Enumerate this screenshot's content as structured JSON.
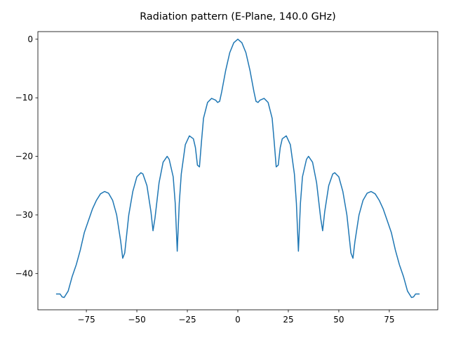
{
  "chart_data": {
    "type": "line",
    "title": "Radiation pattern (E-Plane, 140.0 GHz)",
    "x": [
      -90,
      -88,
      -87,
      -86,
      -84,
      -82,
      -80,
      -78,
      -76,
      -74,
      -72,
      -70,
      -68,
      -66,
      -64,
      -62,
      -60,
      -58,
      -57,
      -56,
      -54,
      -52,
      -50,
      -48,
      -47,
      -45,
      -43,
      -42,
      -41,
      -39,
      -37,
      -35,
      -34,
      -32,
      -31,
      -30,
      -29,
      -28,
      -26,
      -24,
      -22,
      -21,
      -20,
      -19,
      -18,
      -17,
      -15,
      -13,
      -11,
      -10,
      -9,
      -8,
      -6,
      -4,
      -2,
      0,
      2,
      4,
      6,
      8,
      9,
      10,
      11,
      13,
      15,
      17,
      18,
      19,
      20,
      21,
      22,
      24,
      26,
      28,
      29,
      30,
      31,
      32,
      34,
      35,
      37,
      39,
      41,
      42,
      43,
      45,
      47,
      48,
      50,
      52,
      54,
      56,
      57,
      58,
      60,
      62,
      64,
      66,
      68,
      70,
      72,
      74,
      76,
      78,
      80,
      82,
      84,
      86,
      87,
      88,
      90
    ],
    "series": [
      {
        "color": "#1f77b4",
        "values": [
          -43.5,
          -43.5,
          -44.0,
          -44.1,
          -43.0,
          -40.5,
          -38.5,
          -36.0,
          -33.0,
          -31.0,
          -29.0,
          -27.5,
          -26.4,
          -26.0,
          -26.3,
          -27.5,
          -30.0,
          -34.5,
          -37.4,
          -36.5,
          -30.0,
          -26.0,
          -23.5,
          -22.8,
          -23.0,
          -25.0,
          -29.5,
          -32.7,
          -30.5,
          -24.5,
          -21.0,
          -20.0,
          -20.5,
          -23.5,
          -28,
          -36.2,
          -28,
          -23.0,
          -18.0,
          -16.5,
          -17.0,
          -18.5,
          -21.5,
          -21.8,
          -17.5,
          -13.5,
          -10.8,
          -10.1,
          -10.4,
          -10.8,
          -10.6,
          -9.0,
          -5.3,
          -2.3,
          -0.6,
          0,
          -0.6,
          -2.3,
          -5.3,
          -9.0,
          -10.6,
          -10.8,
          -10.4,
          -10.1,
          -10.8,
          -13.5,
          -17.5,
          -21.8,
          -21.5,
          -18.5,
          -17.0,
          -16.5,
          -18.0,
          -23.0,
          -28,
          -36.2,
          -28,
          -23.5,
          -20.5,
          -20.0,
          -21.0,
          -24.5,
          -30.5,
          -32.7,
          -29.5,
          -25.0,
          -23.0,
          -22.8,
          -23.5,
          -26.0,
          -30.0,
          -36.5,
          -37.4,
          -34.5,
          -30.0,
          -27.5,
          -26.3,
          -26.0,
          -26.4,
          -27.5,
          -29.0,
          -31.0,
          -33.0,
          -36.0,
          -38.5,
          -40.5,
          -43.0,
          -44.1,
          -44.0,
          -43.5,
          -43.5
        ]
      }
    ],
    "xlim": [
      -99,
      99
    ],
    "ylim": [
      -46.2,
      1.3
    ],
    "xticks": [
      {
        "value": -75,
        "label": "−75"
      },
      {
        "value": -50,
        "label": "−50"
      },
      {
        "value": -25,
        "label": "−25"
      },
      0,
      25,
      50,
      75
    ],
    "yticks": [
      {
        "value": -40,
        "label": "−40"
      },
      {
        "value": -30,
        "label": "−30"
      },
      {
        "value": -20,
        "label": "−20"
      },
      {
        "value": -10,
        "label": "−10"
      },
      0
    ]
  }
}
